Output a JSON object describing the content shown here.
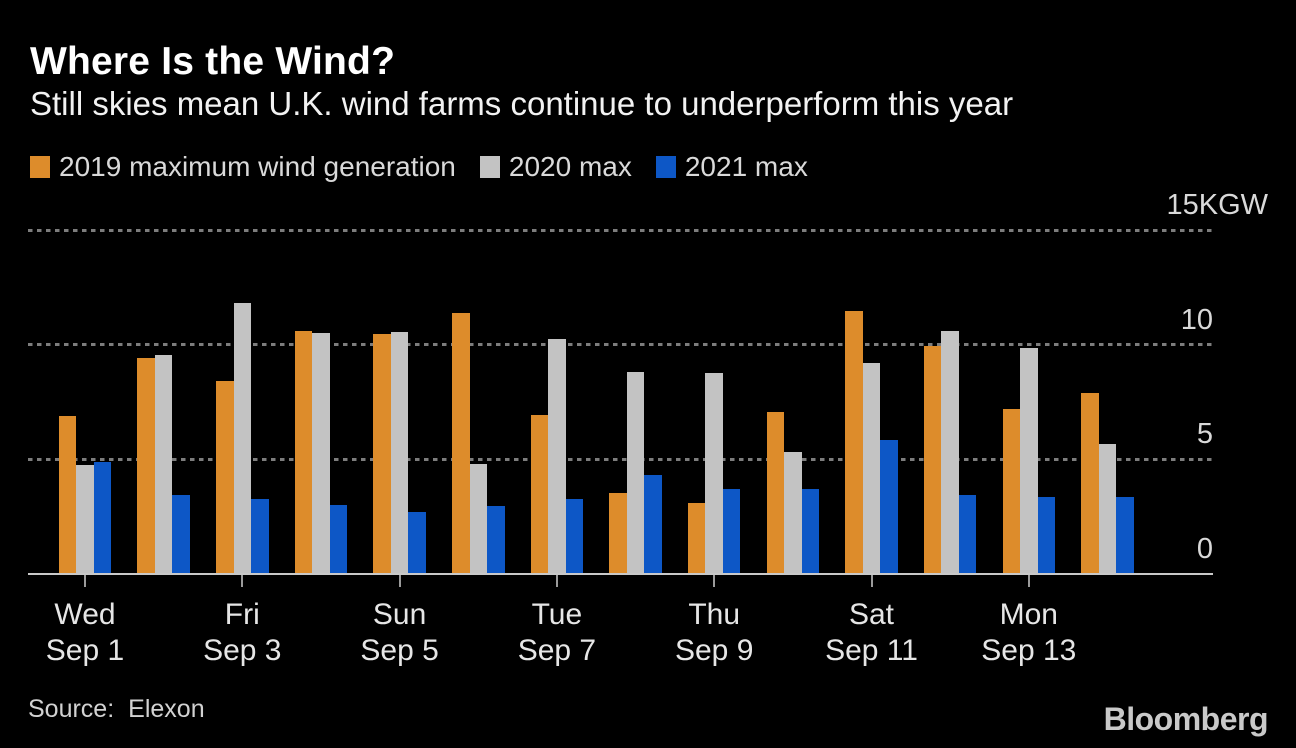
{
  "header": {
    "title": "Where Is the Wind?",
    "subtitle": "Still skies mean U.K. wind farms continue to underperform this year"
  },
  "legend": {
    "items": [
      {
        "label": "2019 maximum wind generation",
        "color": "#DD8C2B"
      },
      {
        "label": "2020 max",
        "color": "#C3C3C3"
      },
      {
        "label": "2021 max",
        "color": "#0D57C6"
      }
    ]
  },
  "chart_data": {
    "type": "bar",
    "title": "Where Is the Wind?",
    "subtitle": "Still skies mean U.K. wind farms continue to underperform this year",
    "unit": "KGW",
    "grid": "dotted horizontal",
    "legend_position": "top",
    "y_axis": {
      "min": 0,
      "max": 15,
      "gridlines": [
        15,
        10,
        5
      ],
      "ticks": [
        {
          "value": 15,
          "label": "15KGW",
          "has_unit": true
        },
        {
          "value": 10,
          "label": "10",
          "has_unit": false
        },
        {
          "value": 5,
          "label": "5",
          "has_unit": false
        },
        {
          "value": 0,
          "label": "0",
          "has_unit": false
        }
      ]
    },
    "categories": [
      "Sep 1",
      "Sep 2",
      "Sep 3",
      "Sep 4",
      "Sep 5",
      "Sep 6",
      "Sep 7",
      "Sep 8",
      "Sep 9",
      "Sep 10",
      "Sep 11",
      "Sep 12",
      "Sep 13",
      "Sep 14"
    ],
    "x_tick_labels": [
      {
        "index": 0,
        "weekday": "Wed",
        "date": "Sep 1"
      },
      {
        "index": 2,
        "weekday": "Fri",
        "date": "Sep 3"
      },
      {
        "index": 4,
        "weekday": "Sun",
        "date": "Sep 5"
      },
      {
        "index": 6,
        "weekday": "Tue",
        "date": "Sep 7"
      },
      {
        "index": 8,
        "weekday": "Thu",
        "date": "Sep 9"
      },
      {
        "index": 10,
        "weekday": "Sat",
        "date": "Sep 11"
      },
      {
        "index": 12,
        "weekday": "Mon",
        "date": "Sep 13"
      }
    ],
    "series": [
      {
        "key": "2019",
        "name": "2019 maximum wind generation",
        "color": "#DD8C2B",
        "values": [
          6.9,
          9.4,
          8.4,
          10.6,
          10.45,
          11.4,
          6.95,
          3.55,
          3.1,
          7.05,
          11.45,
          9.95,
          7.2,
          7.9
        ]
      },
      {
        "key": "2020",
        "name": "2020 max",
        "color": "#C3C3C3",
        "values": [
          4.75,
          9.55,
          11.8,
          10.5,
          10.55,
          4.8,
          10.25,
          8.8,
          8.75,
          5.3,
          9.2,
          10.6,
          9.85,
          5.65
        ]
      },
      {
        "key": "2021",
        "name": "2021 max",
        "color": "#0D57C6",
        "values": [
          4.9,
          3.45,
          3.25,
          3.0,
          2.7,
          2.95,
          3.25,
          4.3,
          3.7,
          3.7,
          5.85,
          3.45,
          3.35,
          3.35
        ]
      }
    ]
  },
  "footer": {
    "source_label": "Source:",
    "source_name": "Elexon",
    "brand": "Bloomberg"
  }
}
